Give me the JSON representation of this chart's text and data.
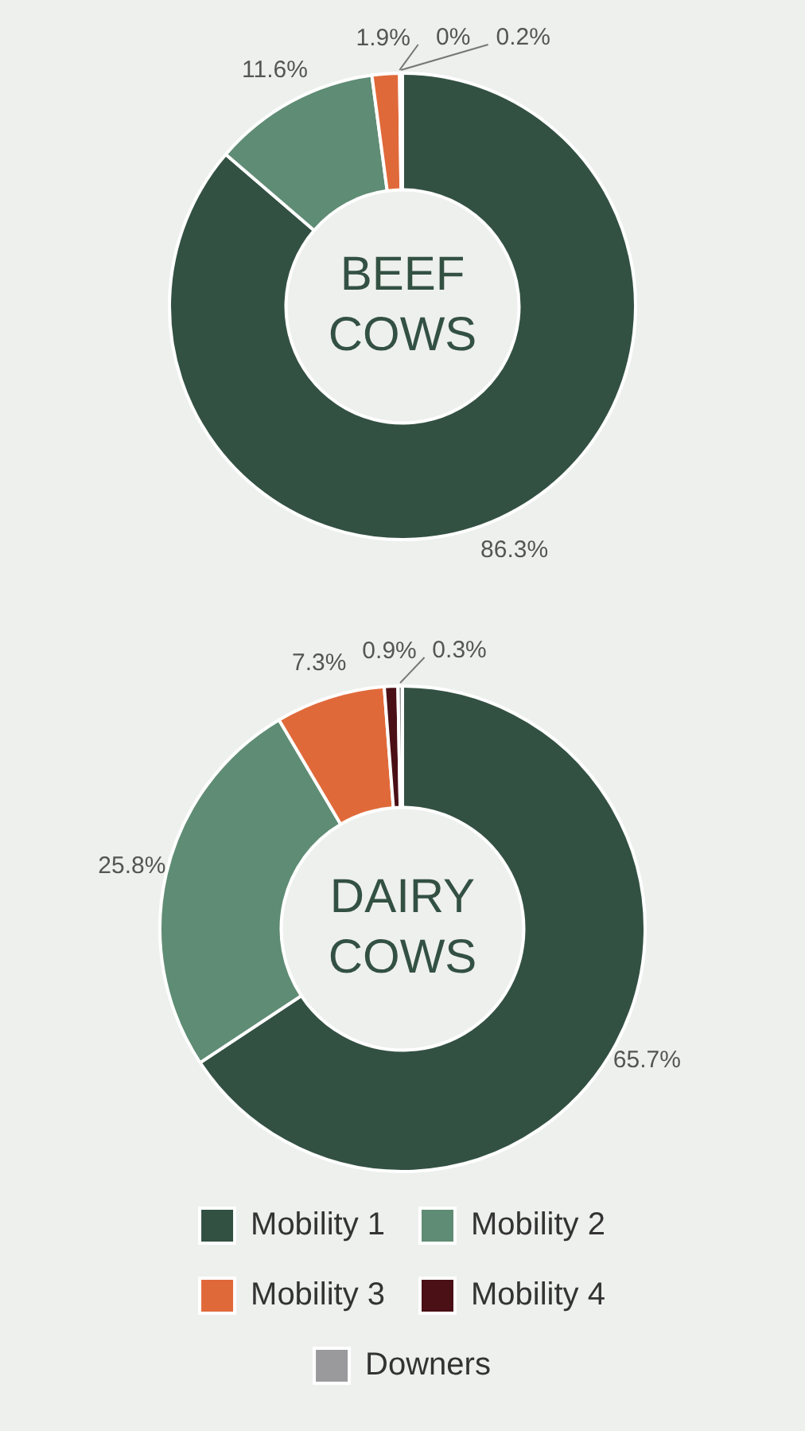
{
  "chart_data": [
    {
      "type": "donut",
      "title": "BEEF COWS",
      "categories": [
        null,
        null,
        null,
        null,
        null
      ],
      "values": [
        86.3,
        11.6,
        1.9,
        0,
        0.2
      ],
      "colors": [
        "#335143",
        "#5f8c74",
        "#e0693a",
        "#4a1016",
        "#9a9a9c"
      ],
      "value_labels": [
        "86.3%",
        "11.6%",
        "1.9%",
        "0%",
        "0.2%"
      ],
      "legend": false
    },
    {
      "type": "donut",
      "title": "DAIRY COWS",
      "categories": [
        "Mobility 1",
        "Mobility 2",
        "Mobility 3",
        "Mobility 4",
        "Downers"
      ],
      "values": [
        65.7,
        25.8,
        7.3,
        0.9,
        0.3
      ],
      "colors": [
        "#335143",
        "#5f8c74",
        "#e0693a",
        "#4a1016",
        "#9a9a9c"
      ],
      "value_labels": [
        "65.7%",
        "25.8%",
        "7.3%",
        "0.9%",
        "0.3%"
      ],
      "legend": "bottom"
    }
  ]
}
